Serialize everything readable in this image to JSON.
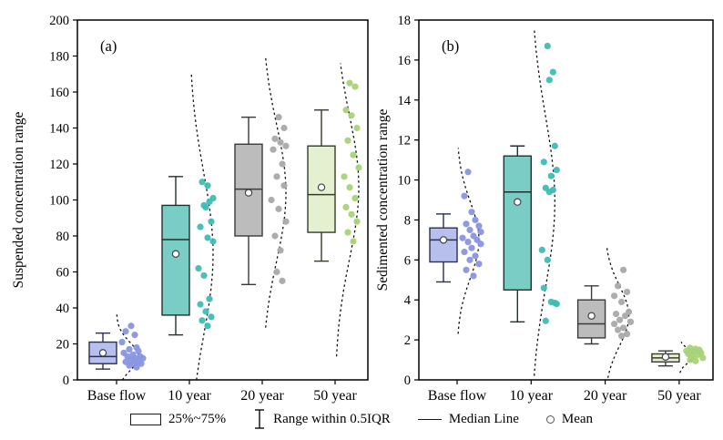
{
  "legend": {
    "items": [
      {
        "icon": "box-swatch",
        "label": "25%~75%"
      },
      {
        "icon": "range-whisker",
        "label": "Range within 0.5IQR"
      },
      {
        "icon": "median-line",
        "label": "Median Line"
      },
      {
        "icon": "mean-circle",
        "label": "Mean"
      }
    ]
  },
  "chart_data": {
    "type": "box",
    "layout": "two side-by-side box plots with jittered data points and dashed half-violin (normal) curves; legend centered below; full rectangular frames; outward ticks",
    "panels": [
      {
        "label": "(a)",
        "ylabel": "Suspended concentration range",
        "ylim": [
          0,
          200
        ],
        "ytick_step": 20,
        "categories": [
          "Base flow",
          "10 year",
          "20 year",
          "50 year"
        ],
        "groups": [
          {
            "category": "Base flow",
            "box_fill": "#b7c0ec",
            "point_color": "#8995e2",
            "stroke": "#2a2f55",
            "q1": 9,
            "median": 13,
            "q3": 21,
            "mean": 15,
            "whisker_low": 6,
            "whisker_high": 26,
            "points": [
              [
                16,
                30
              ],
              [
                10,
                27
              ],
              [
                20,
                25
              ],
              [
                6,
                21
              ],
              [
                22,
                18
              ],
              [
                14,
                17
              ],
              [
                24,
                16
              ],
              [
                8,
                15
              ],
              [
                18,
                14
              ],
              [
                26,
                13
              ],
              [
                12,
                13
              ],
              [
                21,
                12
              ],
              [
                29,
                12
              ],
              [
                16,
                11
              ],
              [
                24,
                10
              ],
              [
                10,
                10
              ],
              [
                19,
                9
              ],
              [
                27,
                9
              ],
              [
                14,
                8
              ],
              [
                22,
                7
              ]
            ],
            "violin": {
              "mu": 13,
              "sigma": 8,
              "lo": 0,
              "hi": 37,
              "amp": 24
            }
          },
          {
            "category": "10 year",
            "box_fill": "#79cdc5",
            "point_color": "#3fbdb3",
            "stroke": "#22302e",
            "q1": 36,
            "median": 78,
            "q3": 97,
            "mean": 70,
            "whisker_low": 25,
            "whisker_high": 113,
            "points": [
              [
                14,
                110
              ],
              [
                20,
                108
              ],
              [
                26,
                101
              ],
              [
                22,
                99
              ],
              [
                16,
                97
              ],
              [
                18,
                96
              ],
              [
                24,
                88
              ],
              [
                12,
                85
              ],
              [
                20,
                79
              ],
              [
                26,
                77
              ],
              [
                10,
                62
              ],
              [
                16,
                58
              ],
              [
                22,
                45
              ],
              [
                12,
                42
              ],
              [
                18,
                38
              ],
              [
                24,
                35
              ],
              [
                14,
                33
              ],
              [
                20,
                30
              ]
            ],
            "violin": {
              "mu": 70,
              "sigma": 45,
              "lo": 0,
              "hi": 170,
              "amp": 26
            }
          },
          {
            "category": "20 year",
            "box_fill": "#bcbcbc",
            "point_color": "#a9a9a9",
            "stroke": "#3a3a3a",
            "q1": 80,
            "median": 106,
            "q3": 131,
            "mean": 104,
            "whisker_low": 53,
            "whisker_high": 146,
            "points": [
              [
                18,
                146
              ],
              [
                24,
                140
              ],
              [
                14,
                134
              ],
              [
                20,
                132
              ],
              [
                26,
                130
              ],
              [
                12,
                128
              ],
              [
                22,
                120
              ],
              [
                16,
                113
              ],
              [
                24,
                108
              ],
              [
                10,
                100
              ],
              [
                18,
                95
              ],
              [
                26,
                88
              ],
              [
                14,
                80
              ],
              [
                20,
                72
              ],
              [
                16,
                60
              ],
              [
                22,
                55
              ]
            ],
            "violin": {
              "mu": 104,
              "sigma": 38,
              "lo": 29,
              "hi": 179,
              "amp": 26
            }
          },
          {
            "category": "50 year",
            "box_fill": "#e4f0cf",
            "point_color": "#a7d377",
            "stroke": "#333d2a",
            "q1": 82,
            "median": 103,
            "q3": 130,
            "mean": 107,
            "whisker_low": 66,
            "whisker_high": 150,
            "points": [
              [
                16,
                165
              ],
              [
                22,
                163
              ],
              [
                12,
                150
              ],
              [
                18,
                147
              ],
              [
                24,
                140
              ],
              [
                14,
                133
              ],
              [
                20,
                125
              ],
              [
                26,
                118
              ],
              [
                10,
                113
              ],
              [
                16,
                107
              ],
              [
                22,
                101
              ],
              [
                12,
                96
              ],
              [
                18,
                92
              ],
              [
                24,
                88
              ],
              [
                14,
                82
              ],
              [
                20,
                77
              ]
            ],
            "violin": {
              "mu": 107,
              "sigma": 40,
              "lo": 13,
              "hi": 176,
              "amp": 26
            }
          }
        ]
      },
      {
        "label": "(b)",
        "ylabel": "Sedimented concentration range",
        "ylim": [
          0,
          18
        ],
        "ytick_step": 2,
        "categories": [
          "Base flow",
          "10 year",
          "20 year",
          "50 year"
        ],
        "groups": [
          {
            "category": "Base flow",
            "box_fill": "#b7c0ec",
            "point_color": "#8995e2",
            "stroke": "#2a2f55",
            "q1": 5.9,
            "median": 7.0,
            "q3": 7.6,
            "mean": 7.0,
            "whisker_low": 4.9,
            "whisker_high": 8.3,
            "points": [
              [
                12,
                10.4
              ],
              [
                8,
                9.2
              ],
              [
                16,
                8.4
              ],
              [
                20,
                8.0
              ],
              [
                10,
                7.8
              ],
              [
                24,
                7.7
              ],
              [
                14,
                7.5
              ],
              [
                26,
                7.4
              ],
              [
                18,
                7.2
              ],
              [
                6,
                7.1
              ],
              [
                22,
                7.0
              ],
              [
                12,
                6.9
              ],
              [
                26,
                6.8
              ],
              [
                16,
                6.6
              ],
              [
                8,
                6.4
              ],
              [
                20,
                6.2
              ],
              [
                14,
                6.0
              ],
              [
                24,
                5.8
              ],
              [
                10,
                5.5
              ],
              [
                18,
                5.2
              ]
            ],
            "violin": {
              "mu": 7.0,
              "sigma": 1.9,
              "lo": 2.3,
              "hi": 11.6,
              "amp": 24
            }
          },
          {
            "category": "10 year",
            "box_fill": "#79cdc5",
            "point_color": "#3fbdb3",
            "stroke": "#22302e",
            "q1": 4.5,
            "median": 9.4,
            "q3": 11.2,
            "mean": 8.9,
            "whisker_low": 2.9,
            "whisker_high": 11.7,
            "points": [
              [
                18,
                16.7
              ],
              [
                24,
                15.4
              ],
              [
                20,
                15.0
              ],
              [
                26,
                11.7
              ],
              [
                14,
                10.9
              ],
              [
                28,
                10.5
              ],
              [
                22,
                10.2
              ],
              [
                16,
                9.6
              ],
              [
                24,
                9.5
              ],
              [
                20,
                9.4
              ],
              [
                12,
                6.5
              ],
              [
                18,
                6.0
              ],
              [
                14,
                4.6
              ],
              [
                22,
                3.9
              ],
              [
                26,
                3.85
              ],
              [
                28,
                3.8
              ],
              [
                16,
                2.95
              ]
            ],
            "violin": {
              "mu": 8.9,
              "sigma": 4.3,
              "lo": 0.2,
              "hi": 17.5,
              "amp": 26
            }
          },
          {
            "category": "20 year",
            "box_fill": "#bcbcbc",
            "point_color": "#a9a9a9",
            "stroke": "#3a3a3a",
            "q1": 2.1,
            "median": 2.8,
            "q3": 4.0,
            "mean": 3.2,
            "whisker_low": 1.8,
            "whisker_high": 4.7,
            "points": [
              [
                20,
                5.5
              ],
              [
                14,
                4.7
              ],
              [
                24,
                4.4
              ],
              [
                10,
                4.2
              ],
              [
                18,
                3.9
              ],
              [
                26,
                3.4
              ],
              [
                12,
                3.3
              ],
              [
                22,
                3.2
              ],
              [
                16,
                3.0
              ],
              [
                28,
                2.9
              ],
              [
                10,
                2.8
              ],
              [
                20,
                2.6
              ],
              [
                14,
                2.5
              ],
              [
                24,
                2.3
              ],
              [
                18,
                2.2
              ]
            ],
            "violin": {
              "mu": 3.2,
              "sigma": 1.5,
              "lo": 0.1,
              "hi": 6.7,
              "amp": 26
            }
          },
          {
            "category": "50 year",
            "box_fill": "#e4f0cf",
            "point_color": "#a7d377",
            "stroke": "#333d2a",
            "q1": 0.9,
            "median": 1.1,
            "q3": 1.3,
            "mean": 1.15,
            "whisker_low": 0.7,
            "whisker_high": 1.45,
            "points": [
              [
                12,
                1.6
              ],
              [
                18,
                1.55
              ],
              [
                22,
                1.5
              ],
              [
                8,
                1.45
              ],
              [
                16,
                1.4
              ],
              [
                24,
                1.35
              ],
              [
                10,
                1.3
              ],
              [
                20,
                1.25
              ],
              [
                14,
                1.15
              ],
              [
                26,
                1.1
              ],
              [
                12,
                1.0
              ],
              [
                18,
                0.95
              ]
            ],
            "violin": {
              "mu": 1.2,
              "sigma": 0.35,
              "lo": 0.35,
              "hi": 1.9,
              "amp": 16
            }
          }
        ]
      }
    ]
  }
}
